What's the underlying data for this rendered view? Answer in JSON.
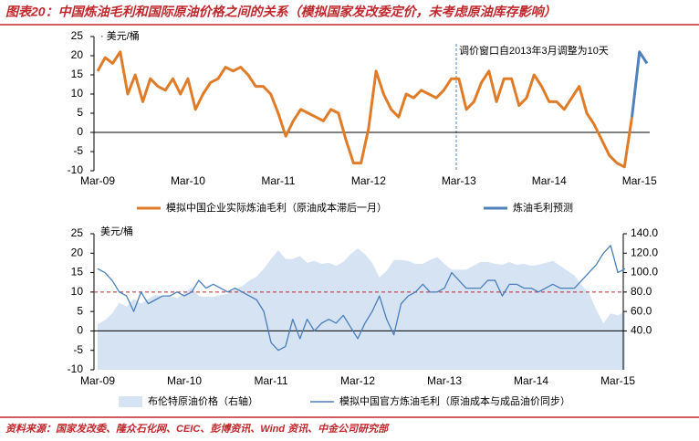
{
  "title": "图表20：中国炼油毛利和国际原油价格之间的关系（模拟国家发改委定价，未考虑原油库存影响）",
  "source": "资料来源：国家发改委、隆众石化网、CEIC、彭博资讯、Wind 资讯、中金公司研究部",
  "chart_data": [
    {
      "type": "line",
      "y_label": "· 美元/桶",
      "annotation": "调价窗口自2013年3月调整为10天",
      "categories": [
        "Mar-09",
        null,
        null,
        null,
        null,
        null,
        null,
        null,
        null,
        null,
        null,
        null,
        "Mar-10",
        null,
        null,
        null,
        null,
        null,
        null,
        null,
        null,
        null,
        null,
        null,
        "Mar-11",
        null,
        null,
        null,
        null,
        null,
        null,
        null,
        null,
        null,
        null,
        null,
        "Mar-12",
        null,
        null,
        null,
        null,
        null,
        null,
        null,
        null,
        null,
        null,
        null,
        "Mar-13",
        null,
        null,
        null,
        null,
        null,
        null,
        null,
        null,
        null,
        null,
        null,
        "Mar-14",
        null,
        null,
        null,
        null,
        null,
        null,
        null,
        null,
        null,
        null,
        null,
        "Mar-15",
        null
      ],
      "series": [
        {
          "name": "模拟中国企业实际炼油毛利（原油成本滞后一月）",
          "color": "#e07b28",
          "type": "line",
          "values": [
            16,
            19.5,
            18,
            21,
            10,
            15,
            8,
            14,
            12,
            11,
            14,
            10,
            14,
            6,
            10,
            13,
            14,
            17,
            16,
            17,
            15,
            12,
            12,
            10,
            5,
            -1,
            3,
            6,
            5,
            4,
            3,
            6,
            5,
            -2,
            -8,
            -8,
            1,
            16,
            10,
            6,
            4,
            10,
            9,
            11,
            10,
            9,
            11,
            14,
            14,
            6,
            8,
            13,
            16,
            8,
            14,
            14,
            7,
            9,
            15,
            12,
            8,
            8,
            6,
            9,
            12,
            5,
            2,
            -2,
            -6,
            -8,
            -9,
            4,
            null,
            null
          ]
        },
        {
          "name": "炼油毛利预测",
          "color": "#4f81bd",
          "type": "line",
          "values": [
            null,
            null,
            null,
            null,
            null,
            null,
            null,
            null,
            null,
            null,
            null,
            null,
            null,
            null,
            null,
            null,
            null,
            null,
            null,
            null,
            null,
            null,
            null,
            null,
            null,
            null,
            null,
            null,
            null,
            null,
            null,
            null,
            null,
            null,
            null,
            null,
            null,
            null,
            null,
            null,
            null,
            null,
            null,
            null,
            null,
            null,
            null,
            null,
            null,
            null,
            null,
            null,
            null,
            null,
            null,
            null,
            null,
            null,
            null,
            null,
            null,
            null,
            null,
            null,
            null,
            null,
            null,
            null,
            null,
            null,
            null,
            4,
            21,
            18
          ]
        }
      ],
      "ylim": [
        -10,
        25
      ],
      "yticks": [
        -10,
        -5,
        0,
        5,
        10,
        15,
        20,
        25
      ]
    },
    {
      "type": "line",
      "y_label": "美元/桶",
      "categories": [
        "Mar-09",
        null,
        null,
        null,
        null,
        null,
        null,
        null,
        null,
        null,
        null,
        null,
        "Mar-10",
        null,
        null,
        null,
        null,
        null,
        null,
        null,
        null,
        null,
        null,
        null,
        "Mar-11",
        null,
        null,
        null,
        null,
        null,
        null,
        null,
        null,
        null,
        null,
        null,
        "Mar-12",
        null,
        null,
        null,
        null,
        null,
        null,
        null,
        null,
        null,
        null,
        null,
        "Mar-13",
        null,
        null,
        null,
        null,
        null,
        null,
        null,
        null,
        null,
        null,
        null,
        "Mar-14",
        null,
        null,
        null,
        null,
        null,
        null,
        null,
        null,
        null,
        null,
        null,
        "Mar-15",
        null
      ],
      "series": [
        {
          "name": "布伦特原油价格（右轴）",
          "color": "#d6e3f3",
          "type": "area",
          "axis": "y2",
          "values": [
            47,
            51,
            58,
            69,
            65,
            73,
            68,
            73,
            77,
            75,
            76,
            74,
            79,
            85,
            76,
            75,
            75,
            77,
            78,
            83,
            86,
            92,
            96,
            104,
            114,
            123,
            114,
            114,
            117,
            110,
            112,
            109,
            110,
            107,
            111,
            119,
            125,
            119,
            110,
            95,
            102,
            113,
            113,
            112,
            109,
            109,
            113,
            116,
            109,
            103,
            103,
            103,
            107,
            111,
            111,
            109,
            108,
            111,
            108,
            109,
            107,
            108,
            110,
            112,
            107,
            102,
            97,
            87,
            79,
            62,
            48,
            58,
            56,
            60
          ]
        },
        {
          "name": "模拟中国官方炼油毛利（原油成本与成品油价同步）",
          "color": "#4a7ebb",
          "type": "line",
          "values": [
            16,
            15,
            13,
            10,
            9,
            5,
            10,
            7,
            8,
            9,
            9,
            10,
            9,
            10,
            13,
            11,
            12,
            11,
            10,
            11,
            10,
            9,
            8,
            5,
            -3,
            -5,
            -4,
            3,
            -2,
            3,
            0,
            2,
            3,
            2,
            4,
            1,
            -2,
            2,
            5,
            9,
            3,
            -1,
            7,
            9,
            10,
            12,
            10,
            10,
            11,
            15,
            13,
            11,
            11,
            11,
            13,
            13,
            9,
            12,
            12,
            11,
            11,
            10,
            11,
            12,
            11,
            11,
            11,
            13,
            15,
            17,
            20,
            22,
            15,
            16
          ]
        }
      ],
      "reference_line": 10,
      "reference_color": "#c0282d",
      "ylim": [
        -10,
        25
      ],
      "yticks": [
        -10,
        -5,
        0,
        5,
        10,
        15,
        20,
        25
      ],
      "y2lim": [
        0,
        140
      ],
      "y2ticks": [
        {
          "value": 40,
          "label": "40.0"
        },
        {
          "value": 60,
          "label": "60.0"
        },
        {
          "value": 80,
          "label": "80.0"
        },
        {
          "value": 100,
          "label": "100.0"
        },
        {
          "value": 120,
          "label": "120.0"
        },
        {
          "value": 140,
          "label": "140.0"
        }
      ]
    }
  ]
}
